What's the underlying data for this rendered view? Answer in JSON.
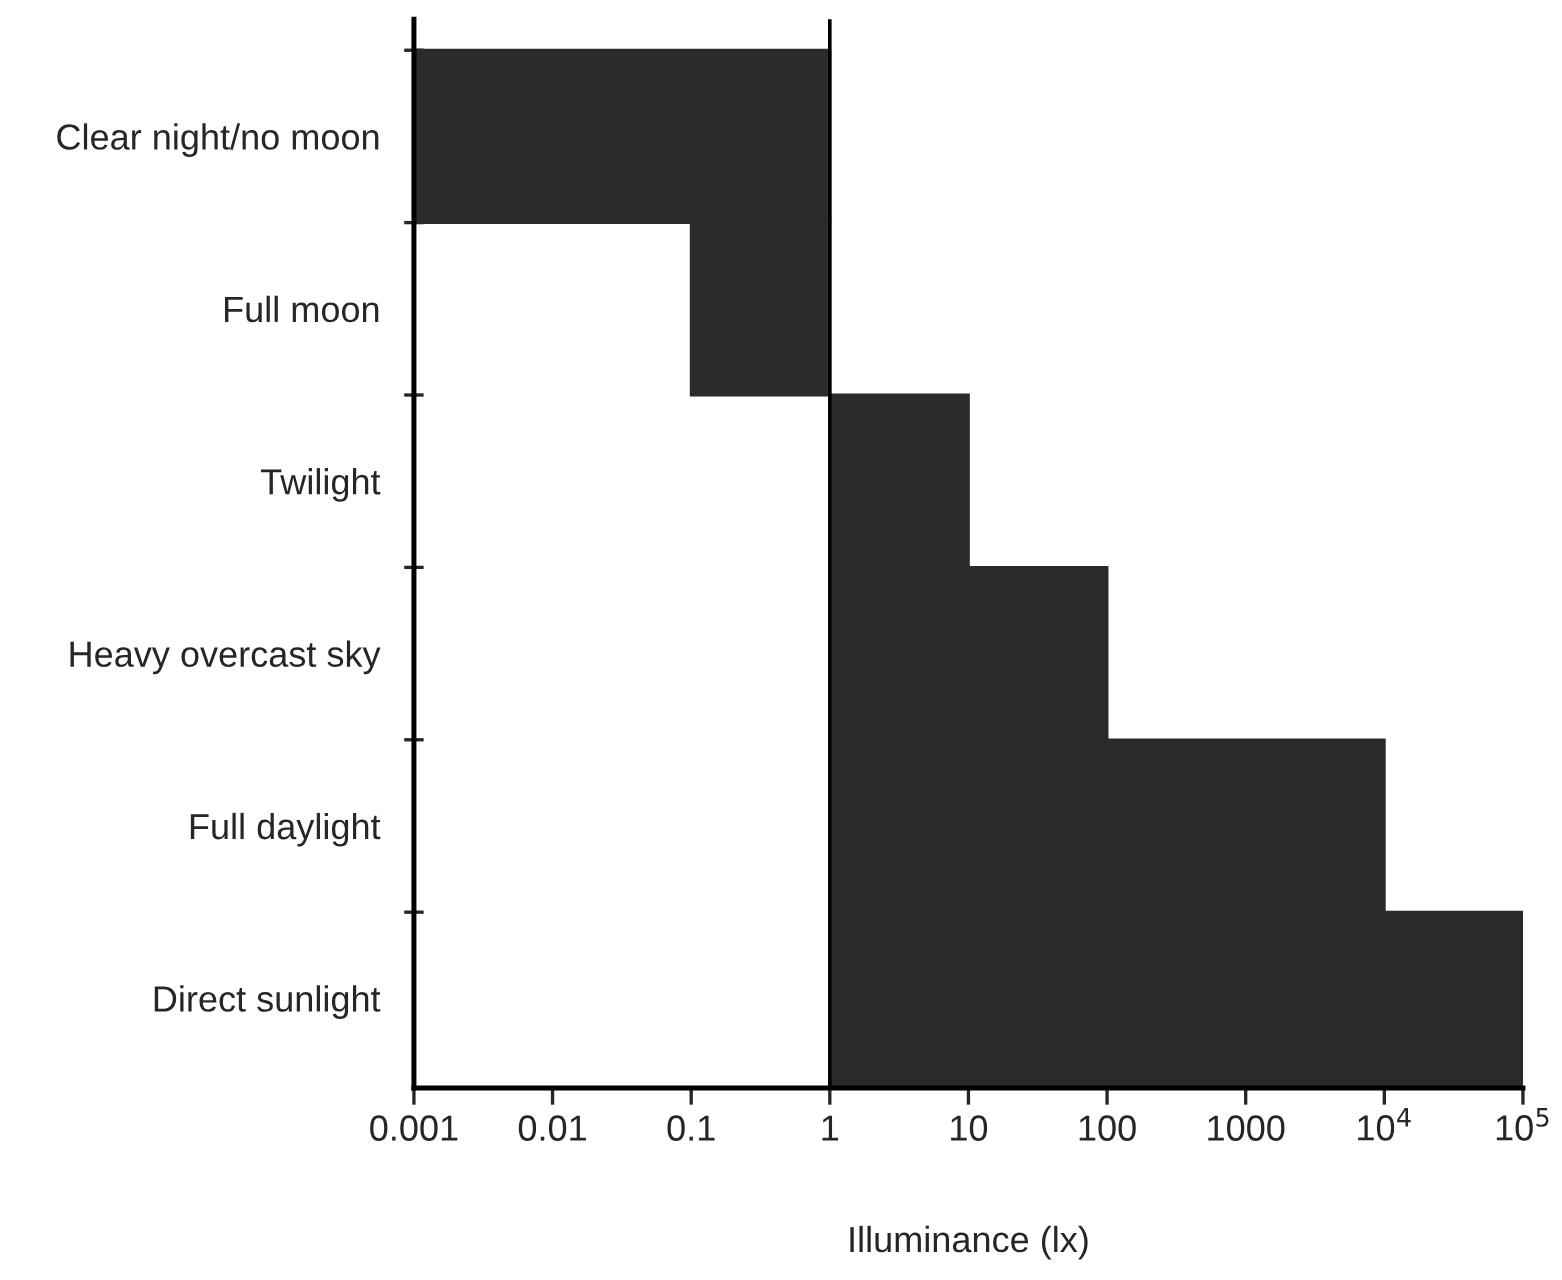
{
  "chart_data": {
    "type": "bar",
    "orientation": "horizontal",
    "log": "x",
    "xlabel": "Illuminance (lx)",
    "categories": [
      "Clear night/no moon",
      "Full moon",
      "Twilight",
      "Heavy overcast sky",
      "Full daylight",
      "Direct sunlight"
    ],
    "base": [
      0.001,
      0.1,
      1,
      1,
      1,
      1
    ],
    "values": [
      0.999,
      0.9,
      9,
      99,
      9999,
      99999
    ],
    "color": "#2b2b2b",
    "xlim": [
      0.001,
      100000
    ],
    "xticks": [
      0.001,
      0.01,
      0.1,
      1,
      10,
      100,
      1000,
      {
        "value": 10000,
        "label": "10$^{4}$"
      },
      {
        "value": 100000,
        "label": "10$^{5}$"
      }
    ],
    "ref_lines": [
      {
        "axis": "x",
        "value": 1,
        "color": "#000000"
      }
    ],
    "grid": false,
    "legend": false
  }
}
